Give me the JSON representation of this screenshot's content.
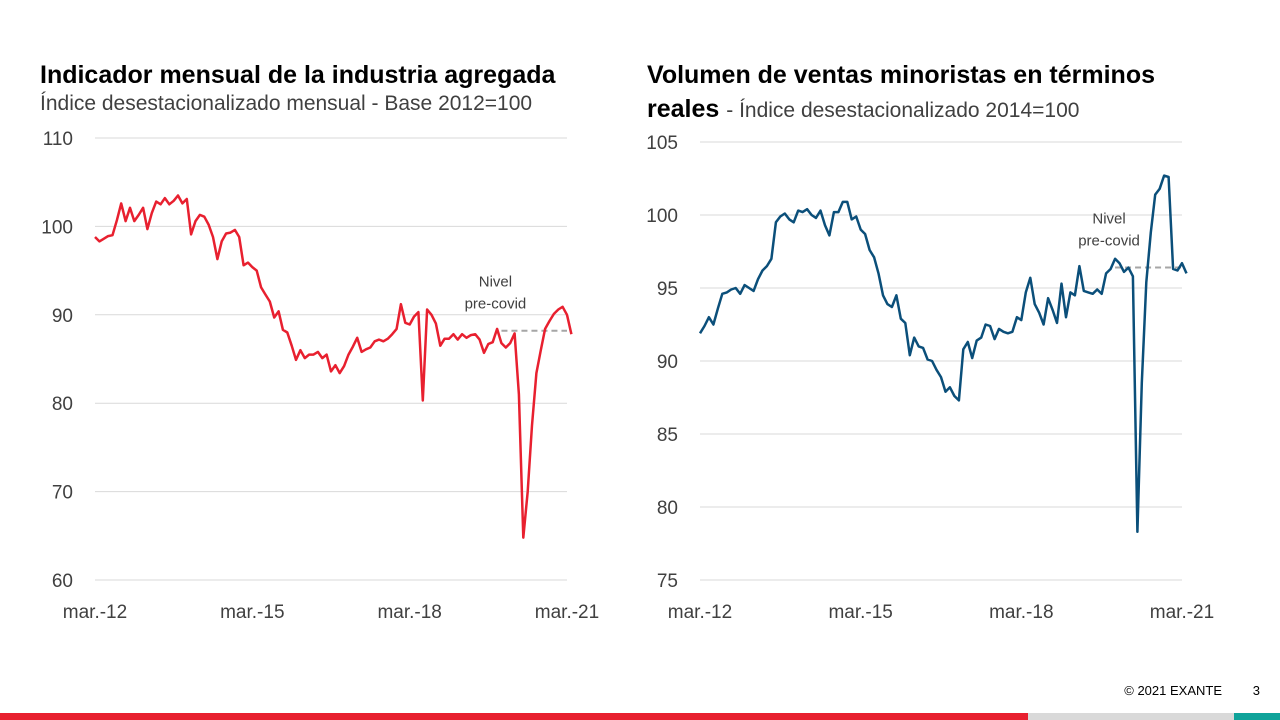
{
  "chart_data": [
    {
      "type": "line",
      "title": "Indicador mensual de la industria agregada",
      "subtitle": "Índice desestacionalizado mensual - Base 2012=100",
      "x_ticks": [
        "mar.-12",
        "mar.-15",
        "mar.-18",
        "mar.-21"
      ],
      "x_range": [
        "2012-03",
        "2021-03"
      ],
      "y_ticks": [
        60,
        70,
        80,
        90,
        100,
        110
      ],
      "ylim": [
        60,
        110
      ],
      "grid": "horizontal",
      "color": "#e8202f",
      "series": [
        {
          "values": [
            98.8,
            98.3,
            98.6,
            98.9,
            99.0,
            100.7,
            102.6,
            100.6,
            102.1,
            100.6,
            101.3,
            102.1,
            99.7,
            101.5,
            102.8,
            102.5,
            103.2,
            102.5,
            102.9,
            103.5,
            102.6,
            103.1,
            99.1,
            100.6,
            101.3,
            101.1,
            100.2,
            98.8,
            96.3,
            98.3,
            99.2,
            99.3,
            99.6,
            98.8,
            95.6,
            95.9,
            95.4,
            95.0,
            93.1,
            92.3,
            91.5,
            89.7,
            90.4,
            88.3,
            88.0,
            86.5,
            84.9,
            86.0,
            85.1,
            85.5,
            85.5,
            85.8,
            85.1,
            85.5,
            83.6,
            84.3,
            83.4,
            84.2,
            85.5,
            86.4,
            87.4,
            85.8,
            86.1,
            86.3,
            87.0,
            87.2,
            87.0,
            87.3,
            87.8,
            88.4,
            91.2,
            89.1,
            88.9,
            89.8,
            90.3,
            80.3,
            90.6,
            90.0,
            89.0,
            86.5,
            87.3,
            87.3,
            87.8,
            87.2,
            87.8,
            87.4,
            87.7,
            87.8,
            87.2,
            85.7,
            86.7,
            86.9,
            88.4,
            86.8,
            86.3,
            86.8,
            87.9,
            81.0,
            64.8,
            70.0,
            77.5,
            83.4,
            86.0,
            88.4,
            89.3,
            90.1,
            90.6,
            90.9,
            90.0,
            87.8
          ]
        }
      ],
      "reference_line": {
        "label": [
          "Nivel",
          "pre-covid"
        ],
        "value": 88.2,
        "from": "2019-12",
        "to": "2021-03"
      }
    },
    {
      "type": "line",
      "title": "Volumen de ventas minoristas en términos",
      "title_bold_suffix": "reales",
      "subtitle": "- Índice desestacionalizado 2014=100",
      "x_ticks": [
        "mar.-12",
        "mar.-15",
        "mar.-18",
        "mar.-21"
      ],
      "x_range": [
        "2012-03",
        "2021-03"
      ],
      "y_ticks": [
        75,
        80,
        85,
        90,
        95,
        100,
        105
      ],
      "ylim": [
        75,
        105
      ],
      "grid": "horizontal",
      "color": "#0b4f7a",
      "series": [
        {
          "values": [
            91.9,
            92.4,
            93.0,
            92.5,
            93.6,
            94.6,
            94.7,
            94.9,
            95.0,
            94.6,
            95.2,
            95.0,
            94.8,
            95.6,
            96.2,
            96.5,
            97.0,
            99.5,
            99.9,
            100.1,
            99.7,
            99.5,
            100.3,
            100.2,
            100.4,
            100.0,
            99.8,
            100.3,
            99.3,
            98.6,
            100.2,
            100.2,
            100.9,
            100.9,
            99.7,
            99.9,
            99.0,
            98.7,
            97.6,
            97.1,
            96.0,
            94.5,
            93.9,
            93.7,
            94.5,
            92.9,
            92.6,
            90.4,
            91.6,
            91.0,
            90.9,
            90.1,
            90.0,
            89.4,
            88.9,
            87.9,
            88.2,
            87.6,
            87.3,
            90.8,
            91.3,
            90.2,
            91.4,
            91.6,
            92.5,
            92.4,
            91.5,
            92.2,
            92.0,
            91.9,
            92.0,
            93.0,
            92.8,
            94.7,
            95.7,
            93.9,
            93.3,
            92.5,
            94.3,
            93.5,
            92.6,
            95.3,
            93.0,
            94.7,
            94.5,
            96.5,
            94.8,
            94.7,
            94.6,
            94.9,
            94.6,
            96.0,
            96.3,
            97.0,
            96.7,
            96.1,
            96.4,
            95.8,
            78.3,
            88.5,
            95.4,
            98.8,
            101.4,
            101.8,
            102.7,
            102.6,
            96.3,
            96.2,
            96.7,
            96.0
          ]
        }
      ],
      "reference_line": {
        "label": [
          "Nivel",
          "pre-covid"
        ],
        "value": 96.4,
        "from": "2019-12",
        "to": "2021-03"
      }
    }
  ],
  "footer": {
    "copyright": "© 2021 EXANTE",
    "page": "3"
  },
  "colors": {
    "bar_red": "#e8202f",
    "bar_grey": "#d9d9d9",
    "bar_teal": "#0fa39a",
    "reference": "#a6a6a6",
    "grid": "#d9d9d9"
  }
}
